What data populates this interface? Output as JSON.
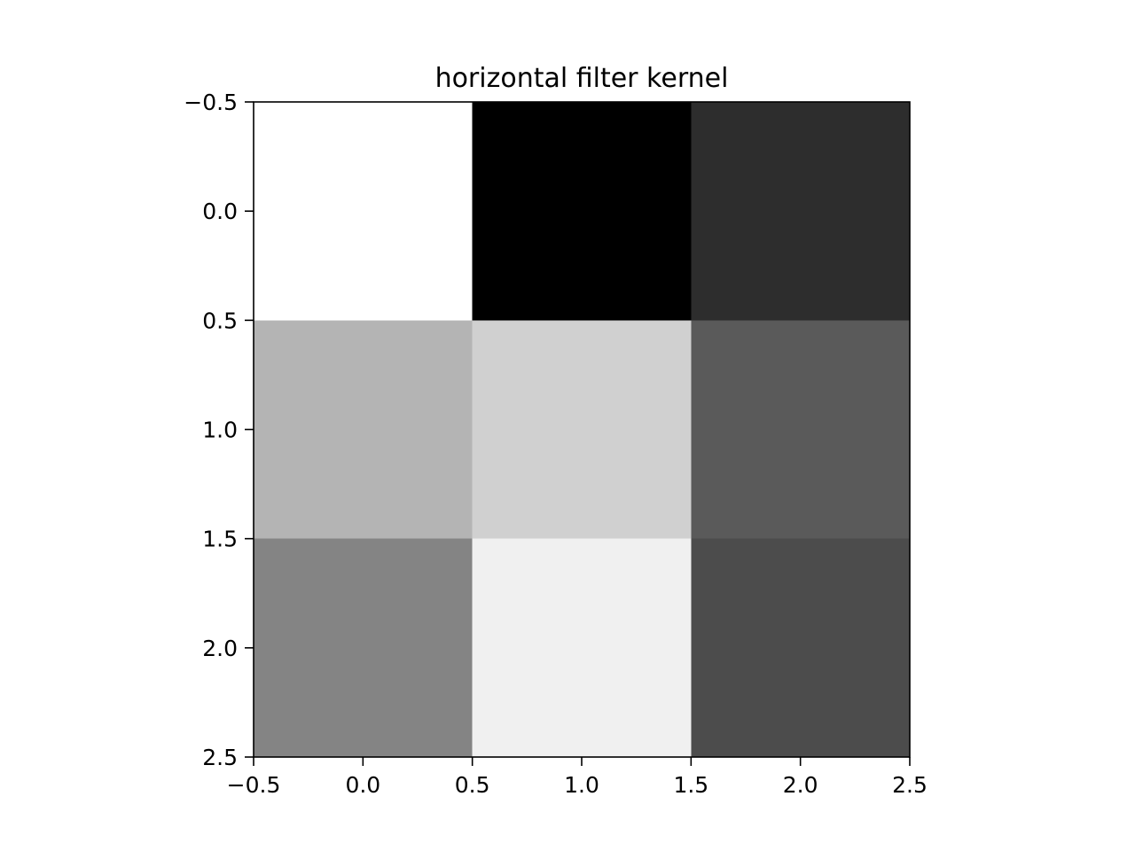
{
  "chart_data": {
    "type": "heatmap",
    "title": "horizontal filter kernel",
    "xlabel": "",
    "ylabel": "",
    "colormap": "gray",
    "xlim": [
      -0.5,
      2.5
    ],
    "ylim": [
      2.5,
      -0.5
    ],
    "x_ticks": [
      "−0.5",
      "0.0",
      "0.5",
      "1.0",
      "1.5",
      "2.0",
      "2.5"
    ],
    "y_ticks": [
      "−0.5",
      "0.0",
      "0.5",
      "1.0",
      "1.5",
      "2.0",
      "2.5"
    ],
    "grid": false,
    "values": [
      [
        1.0,
        0.0,
        0.176
      ],
      [
        0.706,
        0.816,
        0.353
      ],
      [
        0.518,
        0.941,
        0.298
      ]
    ]
  }
}
